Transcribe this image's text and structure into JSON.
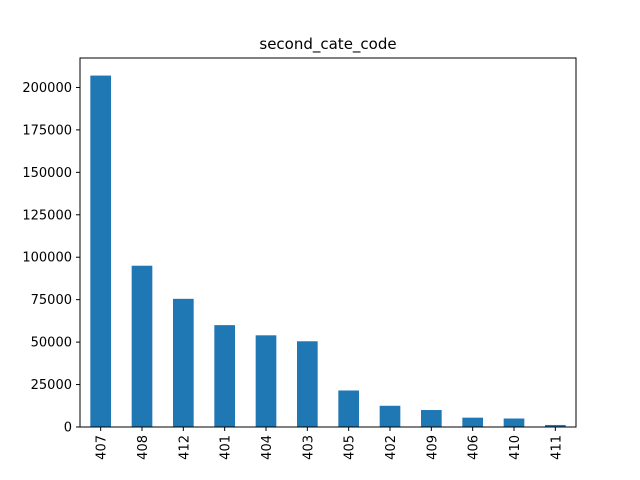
{
  "chart_data": {
    "type": "bar",
    "title": "second_cate_code",
    "xlabel": "",
    "ylabel": "",
    "categories": [
      "407",
      "408",
      "412",
      "401",
      "404",
      "403",
      "405",
      "402",
      "409",
      "406",
      "410",
      "411"
    ],
    "values": [
      207000,
      95000,
      75500,
      60000,
      54000,
      50500,
      21500,
      12500,
      10000,
      5500,
      5000,
      1200
    ],
    "ylim": [
      0,
      217350
    ],
    "yticks": [
      0,
      25000,
      50000,
      75000,
      100000,
      125000,
      150000,
      175000,
      200000
    ],
    "ytick_labels": [
      "0",
      "25000",
      "50000",
      "75000",
      "100000",
      "125000",
      "150000",
      "175000",
      "200000"
    ],
    "bar_color": "#1f77b4",
    "grid": false,
    "legend": "none"
  }
}
